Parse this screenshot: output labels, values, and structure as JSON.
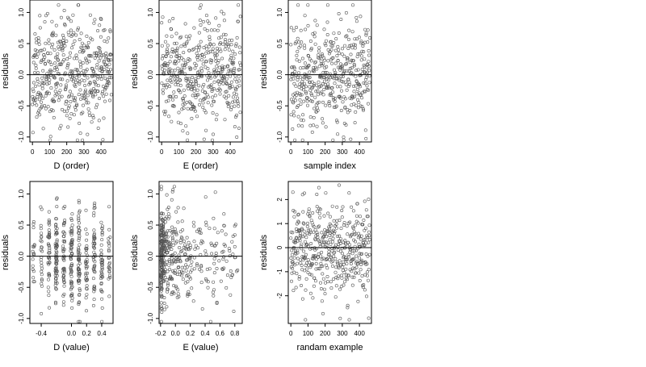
{
  "chart_data": [
    {
      "type": "scatter",
      "xlabel": "D (order)",
      "ylabel": "residuals",
      "xlim": [
        -15,
        470
      ],
      "ylim": [
        -1.08,
        1.2
      ],
      "xticks": [
        0,
        100,
        200,
        300,
        400
      ],
      "xtick_labels": [
        "0",
        "100",
        "200",
        "300",
        "400"
      ],
      "yticks": [
        -1.0,
        -0.5,
        0.0,
        0.5,
        1.0
      ],
      "ytick_labels": [
        "-1.0",
        "-0.5",
        "0.0",
        "0.5",
        "1.0"
      ],
      "hline": 0,
      "point_color": "#555555",
      "seed": 11,
      "n_points": 460,
      "x": {
        "dist": "index",
        "min": 0,
        "max": 460
      },
      "y": {
        "dist": "normal",
        "mean": 0.0,
        "sd": 0.42,
        "min": -1.05,
        "max": 1.12
      }
    },
    {
      "type": "scatter",
      "xlabel": "E (order)",
      "ylabel": "residuals",
      "xlim": [
        -15,
        470
      ],
      "ylim": [
        -1.08,
        1.2
      ],
      "xticks": [
        0,
        100,
        200,
        300,
        400
      ],
      "xtick_labels": [
        "0",
        "100",
        "200",
        "300",
        "400"
      ],
      "yticks": [
        -1.0,
        -0.5,
        0.0,
        0.5,
        1.0
      ],
      "ytick_labels": [
        "-1.0",
        "-0.5",
        "0.0",
        "0.5",
        "1.0"
      ],
      "hline": 0,
      "point_color": "#555555",
      "seed": 23,
      "n_points": 460,
      "x": {
        "dist": "index",
        "min": 0,
        "max": 460
      },
      "y": {
        "dist": "normal",
        "mean": 0.0,
        "sd": 0.42,
        "min": -1.05,
        "max": 1.12
      }
    },
    {
      "type": "scatter",
      "xlabel": "sample index",
      "ylabel": "residuals",
      "xlim": [
        -15,
        470
      ],
      "ylim": [
        -1.08,
        1.2
      ],
      "xticks": [
        0,
        100,
        200,
        300,
        400
      ],
      "xtick_labels": [
        "0",
        "100",
        "200",
        "300",
        "400"
      ],
      "yticks": [
        -1.0,
        -0.5,
        0.0,
        0.5,
        1.0
      ],
      "ytick_labels": [
        "-1.0",
        "-0.5",
        "0.0",
        "0.5",
        "1.0"
      ],
      "hline": 0,
      "point_color": "#555555",
      "seed": 37,
      "n_points": 460,
      "x": {
        "dist": "index",
        "min": 0,
        "max": 460
      },
      "y": {
        "dist": "normal",
        "mean": 0.0,
        "sd": 0.42,
        "min": -1.05,
        "max": 1.12
      }
    },
    {
      "type": "scatter",
      "xlabel": "D (value)",
      "ylabel": "residuals",
      "xlim": [
        -0.55,
        0.55
      ],
      "ylim": [
        -1.08,
        1.2
      ],
      "xticks": [
        -0.4,
        0.0,
        0.2,
        0.4
      ],
      "xtick_labels": [
        "-0.4",
        "0.0",
        "0.2",
        "0.4"
      ],
      "yticks": [
        -1.0,
        -0.5,
        0.0,
        0.5,
        1.0
      ],
      "ytick_labels": [
        "-1.0",
        "-0.5",
        "0.0",
        "0.5",
        "1.0"
      ],
      "hline": 0,
      "point_color": "#555555",
      "seed": 41,
      "n_points": 460,
      "x": {
        "dist": "columns",
        "values": [
          -0.5,
          -0.4,
          -0.3,
          -0.2,
          -0.1,
          0.0,
          0.1,
          0.2,
          0.3,
          0.4,
          0.5
        ],
        "weights": [
          3,
          5,
          6,
          8,
          8,
          9,
          12,
          7,
          6,
          5,
          3
        ],
        "jitter": 0.012
      },
      "y": {
        "dist": "normal",
        "mean": 0.0,
        "sd": 0.4,
        "min": -1.05,
        "max": 1.12
      }
    },
    {
      "type": "scatter",
      "xlabel": "E (value)",
      "ylabel": "residuals",
      "xlim": [
        -0.22,
        0.9
      ],
      "ylim": [
        -1.08,
        1.2
      ],
      "xticks": [
        -0.2,
        0.0,
        0.2,
        0.4,
        0.6,
        0.8
      ],
      "xtick_labels": [
        "-0.2",
        "0.0",
        "0.2",
        "0.4",
        "0.6",
        "0.8"
      ],
      "yticks": [
        -1.0,
        -0.5,
        0.0,
        0.5,
        1.0
      ],
      "ytick_labels": [
        "-1.0",
        "-0.5",
        "0.0",
        "0.5",
        "1.0"
      ],
      "hline": 0,
      "point_color": "#555555",
      "seed": 59,
      "n_points": 460,
      "x": {
        "dist": "skewed",
        "min": -0.19,
        "max": 0.87,
        "power": 3.2
      },
      "y": {
        "dist": "normal",
        "mean": 0.0,
        "sd": 0.4,
        "min": -1.05,
        "max": 1.12
      }
    },
    {
      "type": "scatter",
      "xlabel": "randam example",
      "ylabel": "residuals",
      "xlim": [
        -15,
        470
      ],
      "ylim": [
        -3.15,
        2.75
      ],
      "xticks": [
        0,
        100,
        200,
        300,
        400
      ],
      "xtick_labels": [
        "0",
        "100",
        "200",
        "300",
        "400"
      ],
      "yticks": [
        -2,
        -1,
        0,
        1,
        2
      ],
      "ytick_labels": [
        "-2",
        "-1",
        "0",
        "1",
        "2"
      ],
      "hline": 0,
      "point_color": "#555555",
      "seed": 71,
      "n_points": 460,
      "x": {
        "dist": "index",
        "min": 0,
        "max": 460
      },
      "y": {
        "dist": "normal",
        "mean": 0.0,
        "sd": 1.0,
        "min": -3.0,
        "max": 2.6
      }
    }
  ]
}
